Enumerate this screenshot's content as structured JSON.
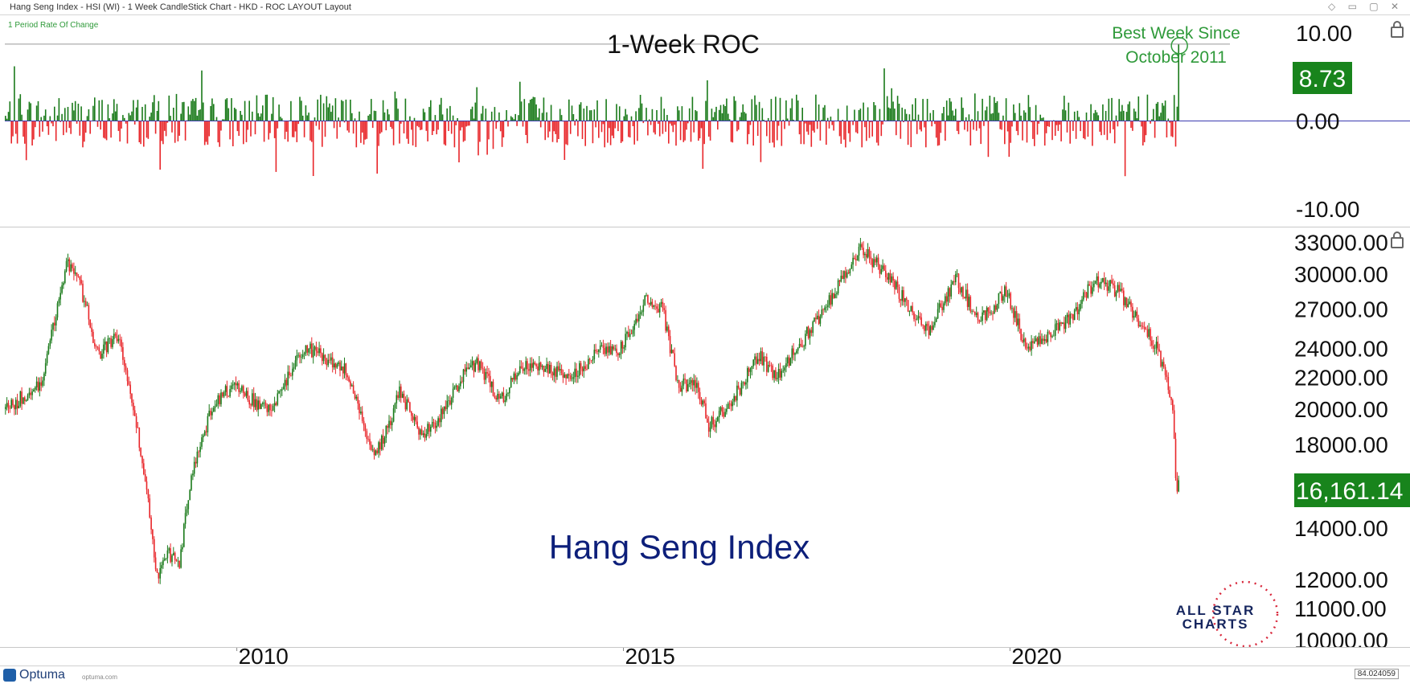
{
  "window": {
    "title": "Hang Seng Index - HSI (WI) - 1 Week CandleStick Chart - HKD - ROC LAYOUT Layout"
  },
  "colors": {
    "up": "#1a7a1a",
    "down": "#e8262a",
    "title_blue": "#0d1f7a",
    "annotation_green": "#2f9a3a",
    "price_tag_bg": "#18841c"
  },
  "branding": {
    "optuma": "Optuma",
    "optuma_url": "optuma.com",
    "allstar_line1": "ALL STAR",
    "allstar_line2": "CHARTS"
  },
  "footer": {
    "coord_readout": "84.024059"
  },
  "chart_data": [
    {
      "type": "bar",
      "panel_label": "1 Period Rate Of Change",
      "title": "1-Week ROC",
      "annotation": [
        "Best Week Since",
        "October 2011"
      ],
      "last_value_tag": "8.73",
      "ylim": [
        -12,
        12
      ],
      "y_ticks": [
        {
          "value": 10.0,
          "label": "10.00"
        },
        {
          "value": 0.0,
          "label": "0.00"
        },
        {
          "value": -10.0,
          "label": "-10.00"
        }
      ],
      "reference_line": 8.73,
      "x_start": 2007.0,
      "x_end": 2022.2,
      "last_value": 8.73,
      "up_color": "#1a7a1a",
      "down_color": "#e8262a"
    },
    {
      "type": "line",
      "title": "Hang Seng Index",
      "scale": "log",
      "last_value_tag": "16,161.14",
      "last_value": 16161.14,
      "ylim": [
        9800,
        34500
      ],
      "y_ticks": [
        {
          "value": 33000,
          "label": "33000.00"
        },
        {
          "value": 30000,
          "label": "30000.00"
        },
        {
          "value": 27000,
          "label": "27000.00"
        },
        {
          "value": 24000,
          "label": "24000.00"
        },
        {
          "value": 22000,
          "label": "22000.00"
        },
        {
          "value": 20000,
          "label": "20000.00"
        },
        {
          "value": 18000,
          "label": "18000.00"
        },
        {
          "value": 14000,
          "label": "14000.00"
        },
        {
          "value": 12000,
          "label": "12000.00"
        },
        {
          "value": 11000,
          "label": "11000.00"
        },
        {
          "value": 10000,
          "label": "10000.00"
        }
      ],
      "x_ticks": [
        {
          "value": 2010,
          "label": "2010"
        },
        {
          "value": 2015,
          "label": "2015"
        },
        {
          "value": 2020,
          "label": "2020"
        }
      ],
      "x_start": 2007.0,
      "x_end": 2022.2,
      "anchors": [
        [
          2007.0,
          20000
        ],
        [
          2007.45,
          21500
        ],
        [
          2007.8,
          31000
        ],
        [
          2007.95,
          29500
        ],
        [
          2008.2,
          23500
        ],
        [
          2008.45,
          25000
        ],
        [
          2008.7,
          19000
        ],
        [
          2008.85,
          15000
        ],
        [
          2008.95,
          12000
        ],
        [
          2009.1,
          13000
        ],
        [
          2009.25,
          12500
        ],
        [
          2009.4,
          16500
        ],
        [
          2009.7,
          20500
        ],
        [
          2010.0,
          21500
        ],
        [
          2010.3,
          20000
        ],
        [
          2010.5,
          20500
        ],
        [
          2010.85,
          24000
        ],
        [
          2011.1,
          23500
        ],
        [
          2011.4,
          22500
        ],
        [
          2011.55,
          20500
        ],
        [
          2011.75,
          17500
        ],
        [
          2011.9,
          18500
        ],
        [
          2012.1,
          21000
        ],
        [
          2012.4,
          18500
        ],
        [
          2012.6,
          19500
        ],
        [
          2012.9,
          22000
        ],
        [
          2013.1,
          23000
        ],
        [
          2013.4,
          20500
        ],
        [
          2013.7,
          23000
        ],
        [
          2014.0,
          22500
        ],
        [
          2014.3,
          22000
        ],
        [
          2014.7,
          24000
        ],
        [
          2014.95,
          24000
        ],
        [
          2015.3,
          28000
        ],
        [
          2015.5,
          27000
        ],
        [
          2015.7,
          21500
        ],
        [
          2015.95,
          21500
        ],
        [
          2016.1,
          19000
        ],
        [
          2016.4,
          20500
        ],
        [
          2016.75,
          23500
        ],
        [
          2016.95,
          22000
        ],
        [
          2017.3,
          24500
        ],
        [
          2017.7,
          28000
        ],
        [
          2018.05,
          32500
        ],
        [
          2018.4,
          30000
        ],
        [
          2018.75,
          26500
        ],
        [
          2018.95,
          25500
        ],
        [
          2019.3,
          29500
        ],
        [
          2019.6,
          26000
        ],
        [
          2019.95,
          28500
        ],
        [
          2020.2,
          24000
        ],
        [
          2020.5,
          25000
        ],
        [
          2020.8,
          26500
        ],
        [
          2021.1,
          29500
        ],
        [
          2021.4,
          28500
        ],
        [
          2021.6,
          26500
        ],
        [
          2021.85,
          24500
        ],
        [
          2022.05,
          21500
        ],
        [
          2022.1,
          19500
        ],
        [
          2022.15,
          15400
        ],
        [
          2022.18,
          16161
        ]
      ],
      "up_color": "#1a7a1a",
      "down_color": "#e8262a"
    }
  ]
}
